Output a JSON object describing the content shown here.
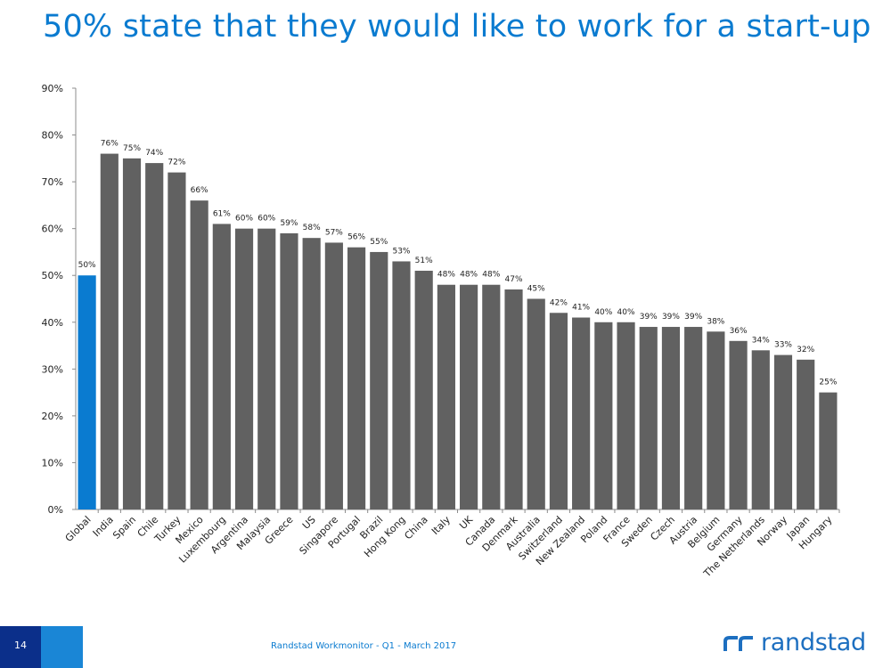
{
  "slide": {
    "title": "50% state that they would like to work for a start-up",
    "page_number": "14",
    "footer": "Randstad Workmonitor - Q1 - March 2017",
    "logo_text": "randstad"
  },
  "colors": {
    "title": "#0a7bd0",
    "highlight_bar": "#0a7bd0",
    "bar": "#616161",
    "footer_dark": "#0b2f8a",
    "footer_light": "#1a86d6"
  },
  "chart_data": {
    "type": "bar",
    "categories": [
      "Global",
      "India",
      "Spain",
      "Chile",
      "Turkey",
      "Mexico",
      "Luxembourg",
      "Argentina",
      "Malaysia",
      "Greece",
      "US",
      "Singapore",
      "Portugal",
      "Brazil",
      "Hong Kong",
      "China",
      "Italy",
      "UK",
      "Canada",
      "Denmark",
      "Australia",
      "Switzerland",
      "New Zealand",
      "Poland",
      "France",
      "Sweden",
      "Czech",
      "Austria",
      "Belgium",
      "Germany",
      "The Netherlands",
      "Norway",
      "Japan",
      "Hungary"
    ],
    "values": [
      50,
      76,
      75,
      74,
      72,
      66,
      61,
      60,
      60,
      59,
      58,
      57,
      56,
      55,
      53,
      51,
      48,
      48,
      48,
      47,
      45,
      42,
      41,
      40,
      40,
      39,
      39,
      39,
      38,
      36,
      34,
      33,
      32,
      25
    ],
    "data_labels": [
      "50%",
      "76%",
      "75%",
      "74%",
      "72%",
      "66%",
      "61%",
      "60%",
      "60%",
      "59%",
      "58%",
      "57%",
      "56%",
      "55%",
      "53%",
      "51%",
      "48%",
      "48%",
      "48%",
      "47%",
      "45%",
      "42%",
      "41%",
      "40%",
      "40%",
      "39%",
      "39%",
      "39%",
      "38%",
      "36%",
      "34%",
      "33%",
      "32%",
      "25%"
    ],
    "highlight_category": "Global",
    "y_ticks": [
      "0%",
      "10%",
      "20%",
      "30%",
      "40%",
      "50%",
      "60%",
      "70%",
      "80%",
      "90%"
    ],
    "ylim": [
      0,
      90
    ],
    "title": "",
    "xlabel": "",
    "ylabel": "",
    "grid": false,
    "legend": false
  }
}
